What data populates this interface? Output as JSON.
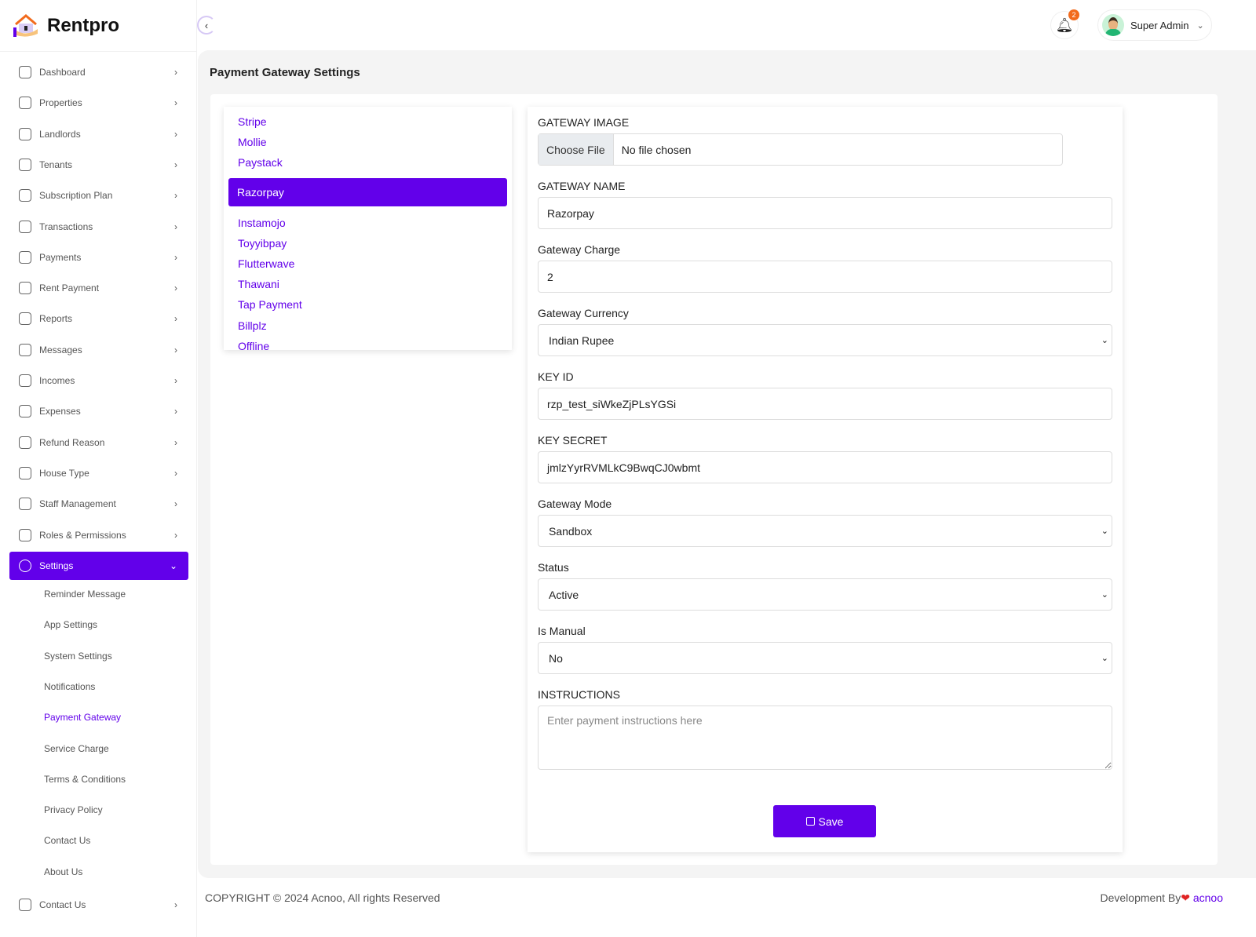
{
  "app": {
    "name": "Rentpro"
  },
  "sidebar": {
    "items": [
      {
        "label": "Dashboard",
        "icon": "home-icon"
      },
      {
        "label": "Properties",
        "icon": "building-icon"
      },
      {
        "label": "Landlords",
        "icon": "users-icon"
      },
      {
        "label": "Tenants",
        "icon": "users-icon"
      },
      {
        "label": "Subscription Plan",
        "icon": "plan-icon"
      },
      {
        "label": "Transactions",
        "icon": "receipt-icon"
      },
      {
        "label": "Payments",
        "icon": "payment-icon"
      },
      {
        "label": "Rent Payment",
        "icon": "rent-icon"
      },
      {
        "label": "Reports",
        "icon": "report-icon"
      },
      {
        "label": "Messages",
        "icon": "message-icon"
      },
      {
        "label": "Incomes",
        "icon": "income-icon"
      },
      {
        "label": "Expenses",
        "icon": "expense-icon"
      },
      {
        "label": "Refund Reason",
        "icon": "refund-icon"
      },
      {
        "label": "House Type",
        "icon": "house-icon"
      },
      {
        "label": "Staff Management",
        "icon": "staff-icon"
      },
      {
        "label": "Roles & Permissions",
        "icon": "roles-icon"
      },
      {
        "label": "Settings",
        "icon": "gear-icon",
        "active": true
      }
    ],
    "sub_items": [
      {
        "label": "Reminder Message"
      },
      {
        "label": "App Settings"
      },
      {
        "label": "System Settings"
      },
      {
        "label": "Notifications"
      },
      {
        "label": "Payment Gateway",
        "active": true
      },
      {
        "label": "Service Charge"
      },
      {
        "label": "Terms & Conditions"
      },
      {
        "label": "Privacy Policy"
      },
      {
        "label": "Contact Us"
      },
      {
        "label": "About Us"
      }
    ],
    "last_item": {
      "label": "Contact Us",
      "icon": "contact-icon"
    }
  },
  "header": {
    "notification_count": "2",
    "user_name": "Super Admin"
  },
  "page": {
    "title": "Payment Gateway Settings"
  },
  "gateways": [
    {
      "label": "Stripe"
    },
    {
      "label": "Mollie"
    },
    {
      "label": "Paystack"
    },
    {
      "label": "Razorpay",
      "active": true
    },
    {
      "label": "Instamojo"
    },
    {
      "label": "Toyyibpay"
    },
    {
      "label": "Flutterwave"
    },
    {
      "label": "Thawani"
    },
    {
      "label": "Tap Payment"
    },
    {
      "label": "Billplz"
    },
    {
      "label": "Offline"
    }
  ],
  "form": {
    "image_label": "GATEWAY IMAGE",
    "choose_file": "Choose File",
    "no_file": "No file chosen",
    "name_label": "GATEWAY NAME",
    "name_value": "Razorpay",
    "charge_label": "Gateway Charge",
    "charge_value": "2",
    "currency_label": "Gateway Currency",
    "currency_value": "Indian Rupee",
    "key_id_label": "KEY ID",
    "key_id_value": "rzp_test_siWkeZjPLsYGSi",
    "key_secret_label": "KEY SECRET",
    "key_secret_value": "jmlzYyrRVMLkC9BwqCJ0wbmt",
    "mode_label": "Gateway Mode",
    "mode_value": "Sandbox",
    "status_label": "Status",
    "status_value": "Active",
    "manual_label": "Is Manual",
    "manual_value": "No",
    "instructions_label": "INSTRUCTIONS",
    "instructions_placeholder": "Enter payment instructions here",
    "save_label": "Save"
  },
  "footer": {
    "copyright": "COPYRIGHT © 2024 Acnoo, All rights Reserved",
    "dev_by": "Development By",
    "brand": "acnoo"
  },
  "colors": {
    "accent": "#6200ea",
    "badge": "#f26b1d"
  }
}
